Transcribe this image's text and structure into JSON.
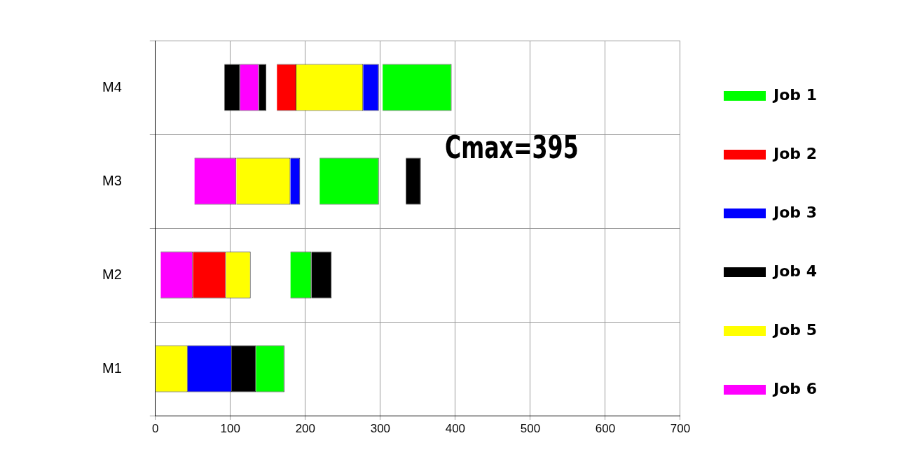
{
  "chart_data": {
    "type": "bar",
    "orientation": "horizontal",
    "categories": [
      "M4",
      "M3",
      "M2",
      "M1"
    ],
    "series": [
      {
        "name": "Job 1",
        "color": "#00ff00",
        "base": [
          303,
          219,
          180,
          134
        ],
        "values": [
          92,
          79,
          28,
          38
        ]
      },
      {
        "name": "Job 2",
        "color": "#ff0000",
        "base": [
          162,
          null,
          50,
          null
        ],
        "values": [
          26,
          null,
          44,
          null
        ]
      },
      {
        "name": "Job 3",
        "color": "#0000ff",
        "base": [
          277,
          180,
          null,
          43
        ],
        "values": [
          21,
          13,
          null,
          59
        ]
      },
      {
        "name": "Job 4",
        "color": "#000000",
        "base": [
          92,
          334,
          208,
          102
        ],
        "values": [
          21,
          20,
          27,
          32
        ]
      },
      {
        "color": "#000000",
        "base": [
          138,
          null,
          null,
          null
        ],
        "values": [
          10,
          null,
          null,
          null
        ]
      },
      {
        "name": "Job 5",
        "color": "#ffff00",
        "base": [
          188,
          108,
          94,
          0
        ],
        "values": [
          89,
          72,
          33,
          43
        ]
      },
      {
        "name": "Job 6",
        "color": "#ff00ff",
        "base": [
          113,
          52,
          7,
          null
        ],
        "values": [
          25,
          56,
          43,
          null
        ]
      }
    ],
    "xlim": [
      0,
      700
    ],
    "xticks": [
      0,
      100,
      200,
      300,
      400,
      500,
      600,
      700
    ],
    "grid": true,
    "legend": "right",
    "annotations": [
      "Cmax=395"
    ]
  }
}
